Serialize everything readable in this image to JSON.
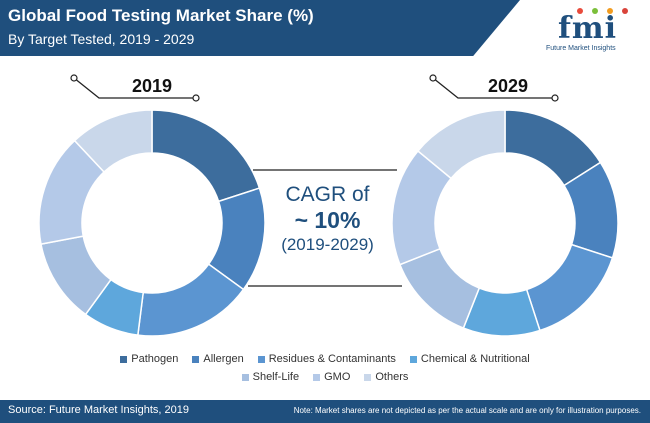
{
  "header": {
    "title": "Global Food Testing Market Share (%)",
    "subtitle": "By Target Tested, 2019 - 2029"
  },
  "logo": {
    "mark": "fmi",
    "text": "Future Market Insights"
  },
  "cagr": {
    "line1": "CAGR of",
    "line2": "~ 10%",
    "line3": "(2019-2029)"
  },
  "footer": {
    "source": "Source: Future Market Insights, 2019",
    "note": "Note: Market shares are not depicted as per the actual scale and are only for illustration purposes."
  },
  "colors": {
    "brand": "#1f4f7d",
    "connector": "#222222",
    "segments": [
      "#3d6d9d",
      "#4a82be",
      "#5b95d1",
      "#5ea7dc",
      "#a6bfe0",
      "#b4c9e8",
      "#c9d7ea"
    ]
  },
  "chart_data": [
    {
      "type": "pie",
      "title": "2019",
      "categories": [
        "Pathogen",
        "Allergen",
        "Residues & Contaminants",
        "Chemical & Nutritional",
        "Shelf-Life",
        "GMO",
        "Others"
      ],
      "values": [
        20,
        15,
        17,
        8,
        12,
        16,
        12
      ],
      "legend": "bottom"
    },
    {
      "type": "pie",
      "title": "2029",
      "categories": [
        "Pathogen",
        "Allergen",
        "Residues & Contaminants",
        "Chemical & Nutritional",
        "Shelf-Life",
        "GMO",
        "Others"
      ],
      "values": [
        16,
        14,
        15,
        11,
        13,
        17,
        14
      ],
      "legend": "bottom"
    }
  ]
}
